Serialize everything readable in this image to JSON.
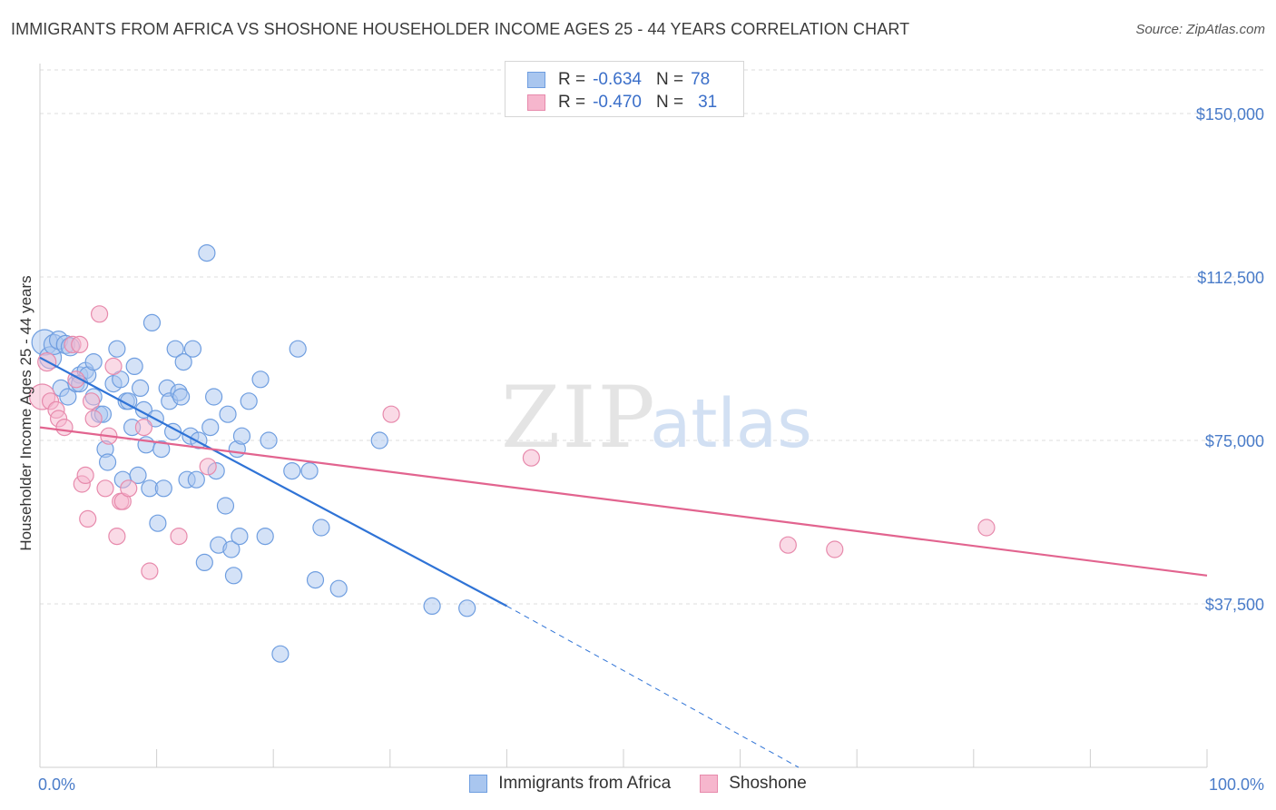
{
  "title": "IMMIGRANTS FROM AFRICA VS SHOSHONE HOUSEHOLDER INCOME AGES 25 - 44 YEARS CORRELATION CHART",
  "source": "Source: ZipAtlas.com",
  "watermark": {
    "zip": "ZIP",
    "atlas": "atlas"
  },
  "legend": {
    "rows": [
      {
        "r_label": "R =",
        "r_value": "-0.634",
        "n_label": "N =",
        "n_value": "78"
      },
      {
        "r_label": "R =",
        "r_value": "-0.470",
        "n_label": "N =",
        "n_value": "31"
      }
    ]
  },
  "colors": {
    "africa_fill": "#a9c6ef",
    "africa_stroke": "#6f9ee0",
    "africa_line": "#2f73d6",
    "shoshone_fill": "#f6b6cd",
    "shoshone_stroke": "#e78aac",
    "shoshone_line": "#e2648f",
    "grid": "#dcdcdc",
    "tick_label": "#4a7cc9"
  },
  "chart_data": {
    "type": "scatter",
    "title": "IMMIGRANTS FROM AFRICA VS SHOSHONE HOUSEHOLDER INCOME AGES 25 - 44 YEARS CORRELATION CHART",
    "xlabel": "",
    "ylabel": "Householder Income Ages 25 - 44 years",
    "xlim": [
      0,
      100
    ],
    "ylim": [
      0,
      160000
    ],
    "x_tick_labels": [
      "0.0%",
      "100.0%"
    ],
    "y_ticks": [
      37500,
      75000,
      112500,
      150000
    ],
    "y_tick_labels": [
      "$37,500",
      "$75,000",
      "$112,500",
      "$150,000"
    ],
    "grid": true,
    "legend_position": "bottom-center",
    "series": [
      {
        "name": "Immigrants from Africa",
        "r": -0.634,
        "n": 78,
        "trend": {
          "x0": 0,
          "y0": 94000,
          "x1": 40,
          "y1": 37000,
          "dashed_to_x": 65,
          "dashed_to_y": 0
        },
        "points": [
          [
            0.4,
            97500,
            14
          ],
          [
            0.9,
            94000,
            12
          ],
          [
            1.2,
            97000,
            11
          ],
          [
            1.6,
            98000,
            10
          ],
          [
            2.2,
            97000,
            10
          ],
          [
            2.6,
            96500,
            10
          ],
          [
            1.8,
            87000,
            9
          ],
          [
            2.4,
            85000,
            9
          ],
          [
            3.1,
            88000,
            9
          ],
          [
            3.4,
            90000,
            9
          ],
          [
            3.9,
            91000,
            9
          ],
          [
            4.1,
            90000,
            9
          ],
          [
            4.6,
            93000,
            9
          ],
          [
            5.1,
            81000,
            9
          ],
          [
            5.4,
            81000,
            9
          ],
          [
            5.6,
            73000,
            9
          ],
          [
            5.8,
            70000,
            9
          ],
          [
            6.3,
            88000,
            9
          ],
          [
            6.6,
            96000,
            9
          ],
          [
            6.9,
            89000,
            9
          ],
          [
            7.1,
            66000,
            9
          ],
          [
            7.4,
            84000,
            9
          ],
          [
            7.6,
            84000,
            9
          ],
          [
            7.9,
            78000,
            9
          ],
          [
            8.1,
            92000,
            9
          ],
          [
            8.4,
            67000,
            9
          ],
          [
            8.6,
            87000,
            9
          ],
          [
            8.9,
            82000,
            9
          ],
          [
            9.1,
            74000,
            9
          ],
          [
            9.4,
            64000,
            9
          ],
          [
            9.6,
            102000,
            9
          ],
          [
            9.9,
            80000,
            9
          ],
          [
            10.1,
            56000,
            9
          ],
          [
            10.4,
            73000,
            9
          ],
          [
            10.6,
            64000,
            9
          ],
          [
            10.9,
            87000,
            9
          ],
          [
            11.1,
            84000,
            9
          ],
          [
            11.4,
            77000,
            9
          ],
          [
            11.6,
            96000,
            9
          ],
          [
            11.9,
            86000,
            9
          ],
          [
            12.1,
            85000,
            9
          ],
          [
            12.3,
            93000,
            9
          ],
          [
            12.6,
            66000,
            9
          ],
          [
            12.9,
            76000,
            9
          ],
          [
            13.1,
            96000,
            9
          ],
          [
            13.4,
            66000,
            9
          ],
          [
            13.6,
            75000,
            9
          ],
          [
            14.1,
            47000,
            9
          ],
          [
            14.6,
            78000,
            9
          ],
          [
            14.9,
            85000,
            9
          ],
          [
            15.1,
            68000,
            9
          ],
          [
            15.3,
            51000,
            9
          ],
          [
            15.9,
            60000,
            9
          ],
          [
            16.1,
            81000,
            9
          ],
          [
            16.4,
            50000,
            9
          ],
          [
            16.6,
            44000,
            9
          ],
          [
            16.9,
            73000,
            9
          ],
          [
            17.1,
            53000,
            9
          ],
          [
            17.3,
            76000,
            9
          ],
          [
            17.9,
            84000,
            9
          ],
          [
            18.9,
            89000,
            9
          ],
          [
            19.3,
            53000,
            9
          ],
          [
            19.6,
            75000,
            9
          ],
          [
            20.6,
            26000,
            9
          ],
          [
            21.6,
            68000,
            9
          ],
          [
            22.1,
            96000,
            9
          ],
          [
            23.1,
            68000,
            9
          ],
          [
            23.6,
            43000,
            9
          ],
          [
            24.1,
            55000,
            9
          ],
          [
            25.6,
            41000,
            9
          ],
          [
            29.1,
            75000,
            9
          ],
          [
            33.6,
            37000,
            9
          ],
          [
            36.6,
            36500,
            9
          ],
          [
            14.3,
            118000,
            9
          ],
          [
            4.6,
            85000,
            9
          ],
          [
            3.4,
            88000,
            9
          ],
          [
            10.1,
            100000,
            0
          ],
          [
            2.2,
            87000,
            0
          ]
        ]
      },
      {
        "name": "Shoshone",
        "r": -0.47,
        "n": 31,
        "trend": {
          "x0": 0,
          "y0": 78000,
          "x1": 100,
          "y1": 44000
        },
        "points": [
          [
            0.2,
            85000,
            14
          ],
          [
            0.6,
            93000,
            10
          ],
          [
            0.9,
            84000,
            9
          ],
          [
            1.4,
            82000,
            9
          ],
          [
            1.6,
            80000,
            9
          ],
          [
            2.1,
            78000,
            9
          ],
          [
            2.8,
            97000,
            9
          ],
          [
            3.1,
            89000,
            9
          ],
          [
            3.6,
            65000,
            9
          ],
          [
            3.9,
            67000,
            9
          ],
          [
            4.1,
            57000,
            9
          ],
          [
            4.4,
            84000,
            9
          ],
          [
            4.6,
            80000,
            9
          ],
          [
            5.1,
            104000,
            9
          ],
          [
            5.6,
            64000,
            9
          ],
          [
            5.9,
            76000,
            9
          ],
          [
            6.3,
            92000,
            9
          ],
          [
            6.6,
            53000,
            9
          ],
          [
            6.9,
            61000,
            9
          ],
          [
            7.1,
            61000,
            9
          ],
          [
            7.6,
            64000,
            9
          ],
          [
            8.9,
            78000,
            9
          ],
          [
            9.4,
            45000,
            9
          ],
          [
            11.9,
            53000,
            9
          ],
          [
            14.4,
            69000,
            9
          ],
          [
            30.1,
            81000,
            9
          ],
          [
            42.1,
            71000,
            9
          ],
          [
            64.1,
            51000,
            9
          ],
          [
            68.1,
            50000,
            9
          ],
          [
            81.1,
            55000,
            9
          ],
          [
            3.4,
            97000,
            9
          ]
        ]
      }
    ]
  }
}
